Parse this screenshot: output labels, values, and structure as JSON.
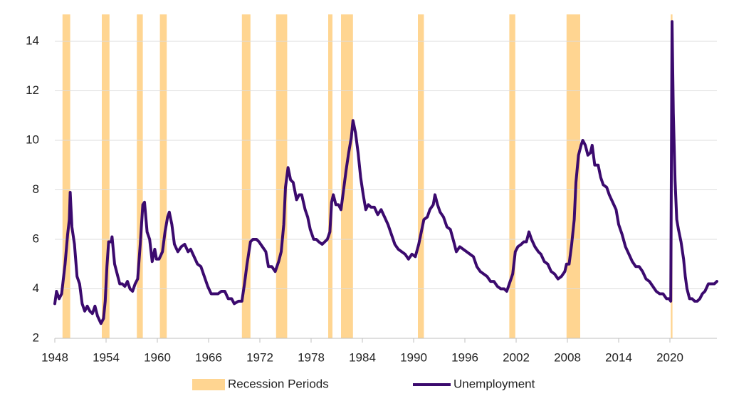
{
  "chart_data": {
    "type": "line",
    "xlim": [
      1948,
      2025.5
    ],
    "xticks": [
      1948,
      1954,
      1960,
      1966,
      1972,
      1978,
      1984,
      1990,
      1996,
      2002,
      2008,
      2014,
      2020
    ],
    "ylim": [
      2,
      15
    ],
    "yticks": [
      2,
      4,
      6,
      8,
      10,
      12,
      14
    ],
    "grid": true,
    "legend": "bottom",
    "recessions": {
      "name": "Recession Periods",
      "color": "#ffd591",
      "start": [
        1948.9,
        1953.5,
        1957.6,
        1960.3,
        1969.9,
        1973.9,
        1980.0,
        1981.5,
        1990.5,
        2001.2,
        2007.9,
        2020.1
      ],
      "end": [
        1949.8,
        1954.4,
        1958.3,
        1961.1,
        1970.9,
        1975.2,
        1980.5,
        1982.9,
        1991.2,
        2001.9,
        2009.5,
        2020.3
      ]
    },
    "series": [
      {
        "name": "Unemployment",
        "color": "#3b0a6e",
        "x": [
          1948.0,
          1948.2,
          1948.5,
          1948.8,
          1949.2,
          1949.5,
          1949.7,
          1949.8,
          1950.0,
          1950.3,
          1950.6,
          1950.9,
          1951.2,
          1951.5,
          1951.8,
          1952.1,
          1952.4,
          1952.7,
          1953.0,
          1953.4,
          1953.7,
          1953.9,
          1954.1,
          1954.3,
          1954.6,
          1954.7,
          1955.0,
          1955.3,
          1955.6,
          1955.9,
          1956.2,
          1956.5,
          1956.8,
          1957.1,
          1957.4,
          1957.7,
          1958.0,
          1958.3,
          1958.5,
          1958.8,
          1959.1,
          1959.4,
          1959.7,
          1959.9,
          1960.2,
          1960.6,
          1960.9,
          1961.2,
          1961.4,
          1961.7,
          1962.0,
          1962.4,
          1962.8,
          1963.2,
          1963.6,
          1963.9,
          1964.3,
          1964.7,
          1965.1,
          1965.5,
          1965.9,
          1966.3,
          1966.7,
          1967.1,
          1967.5,
          1967.9,
          1968.3,
          1968.7,
          1969.0,
          1969.5,
          1969.9,
          1970.2,
          1970.5,
          1970.9,
          1971.2,
          1971.6,
          1971.9,
          1972.3,
          1972.7,
          1973.0,
          1973.4,
          1973.8,
          1974.2,
          1974.5,
          1974.8,
          1975.0,
          1975.3,
          1975.6,
          1975.9,
          1976.3,
          1976.6,
          1976.9,
          1977.3,
          1977.6,
          1977.9,
          1978.3,
          1978.6,
          1978.9,
          1979.3,
          1979.6,
          1979.9,
          1980.2,
          1980.4,
          1980.6,
          1980.9,
          1981.2,
          1981.5,
          1981.8,
          1982.1,
          1982.4,
          1982.7,
          1982.9,
          1983.2,
          1983.5,
          1983.8,
          1984.1,
          1984.4,
          1984.7,
          1985.0,
          1985.4,
          1985.8,
          1986.2,
          1986.6,
          1987.0,
          1987.4,
          1987.8,
          1988.2,
          1988.6,
          1989.0,
          1989.4,
          1989.8,
          1990.2,
          1990.6,
          1990.9,
          1991.2,
          1991.6,
          1991.9,
          1992.3,
          1992.5,
          1992.8,
          1993.1,
          1993.5,
          1993.9,
          1994.3,
          1994.7,
          1995.0,
          1995.4,
          1995.8,
          1996.2,
          1996.6,
          1997.0,
          1997.4,
          1997.8,
          1998.2,
          1998.6,
          1999.0,
          1999.4,
          1999.8,
          2000.2,
          2000.6,
          2000.9,
          2001.2,
          2001.6,
          2001.9,
          2002.2,
          2002.6,
          2002.9,
          2003.2,
          2003.5,
          2003.8,
          2004.2,
          2004.6,
          2004.9,
          2005.3,
          2005.7,
          2006.1,
          2006.5,
          2006.9,
          2007.3,
          2007.7,
          2007.9,
          2008.2,
          2008.5,
          2008.8,
          2009.0,
          2009.3,
          2009.6,
          2009.8,
          2010.1,
          2010.4,
          2010.7,
          2010.9,
          2011.2,
          2011.6,
          2011.9,
          2012.2,
          2012.6,
          2012.9,
          2013.3,
          2013.7,
          2014.0,
          2014.4,
          2014.8,
          2015.2,
          2015.6,
          2016.0,
          2016.4,
          2016.8,
          2017.2,
          2017.6,
          2018.0,
          2018.4,
          2018.8,
          2019.2,
          2019.6,
          2019.9,
          2020.1,
          2020.25,
          2020.4,
          2020.6,
          2020.8,
          2021.0,
          2021.3,
          2021.6,
          2021.8,
          2022.0,
          2022.3,
          2022.6,
          2022.9,
          2023.2,
          2023.5,
          2023.8,
          2024.1,
          2024.5,
          2024.9,
          2025.2,
          2025.5
        ],
        "values": [
          3.4,
          3.9,
          3.6,
          3.8,
          5.0,
          6.2,
          6.8,
          7.9,
          6.5,
          5.8,
          4.5,
          4.2,
          3.4,
          3.1,
          3.3,
          3.1,
          3.0,
          3.3,
          2.9,
          2.6,
          2.8,
          3.5,
          4.9,
          5.9,
          5.9,
          6.1,
          5.0,
          4.6,
          4.2,
          4.2,
          4.1,
          4.3,
          4.0,
          3.9,
          4.2,
          4.4,
          5.8,
          7.4,
          7.5,
          6.3,
          6.0,
          5.1,
          5.6,
          5.2,
          5.2,
          5.5,
          6.3,
          6.9,
          7.1,
          6.6,
          5.8,
          5.5,
          5.7,
          5.8,
          5.5,
          5.6,
          5.3,
          5.0,
          4.9,
          4.5,
          4.1,
          3.8,
          3.8,
          3.8,
          3.9,
          3.9,
          3.6,
          3.6,
          3.4,
          3.5,
          3.5,
          4.2,
          5.0,
          5.9,
          6.0,
          6.0,
          5.9,
          5.7,
          5.5,
          4.9,
          4.9,
          4.7,
          5.1,
          5.5,
          6.6,
          8.1,
          8.9,
          8.4,
          8.3,
          7.6,
          7.8,
          7.8,
          7.2,
          6.9,
          6.4,
          6.0,
          6.0,
          5.9,
          5.8,
          5.9,
          6.0,
          6.3,
          7.5,
          7.8,
          7.4,
          7.4,
          7.2,
          8.0,
          8.8,
          9.5,
          10.1,
          10.8,
          10.3,
          9.5,
          8.5,
          7.8,
          7.2,
          7.4,
          7.3,
          7.3,
          7.0,
          7.2,
          6.9,
          6.6,
          6.2,
          5.8,
          5.6,
          5.5,
          5.4,
          5.2,
          5.4,
          5.3,
          5.8,
          6.3,
          6.8,
          6.9,
          7.2,
          7.4,
          7.8,
          7.4,
          7.1,
          6.9,
          6.5,
          6.4,
          5.9,
          5.5,
          5.7,
          5.6,
          5.5,
          5.4,
          5.3,
          4.9,
          4.7,
          4.6,
          4.5,
          4.3,
          4.3,
          4.1,
          4.0,
          4.0,
          3.9,
          4.2,
          4.6,
          5.5,
          5.7,
          5.8,
          5.9,
          5.9,
          6.3,
          6.0,
          5.7,
          5.5,
          5.4,
          5.1,
          5.0,
          4.7,
          4.6,
          4.4,
          4.5,
          4.7,
          5.0,
          5.0,
          5.8,
          6.8,
          8.3,
          9.4,
          9.8,
          10.0,
          9.8,
          9.4,
          9.5,
          9.8,
          9.0,
          9.0,
          8.5,
          8.2,
          8.1,
          7.8,
          7.5,
          7.2,
          6.6,
          6.2,
          5.7,
          5.4,
          5.1,
          4.9,
          4.9,
          4.7,
          4.4,
          4.3,
          4.1,
          3.9,
          3.8,
          3.8,
          3.6,
          3.6,
          3.5,
          14.8,
          11.1,
          8.4,
          6.8,
          6.4,
          5.9,
          5.2,
          4.5,
          4.0,
          3.6,
          3.6,
          3.5,
          3.5,
          3.6,
          3.8,
          3.9,
          4.2,
          4.2,
          4.2,
          4.3
        ]
      }
    ]
  }
}
